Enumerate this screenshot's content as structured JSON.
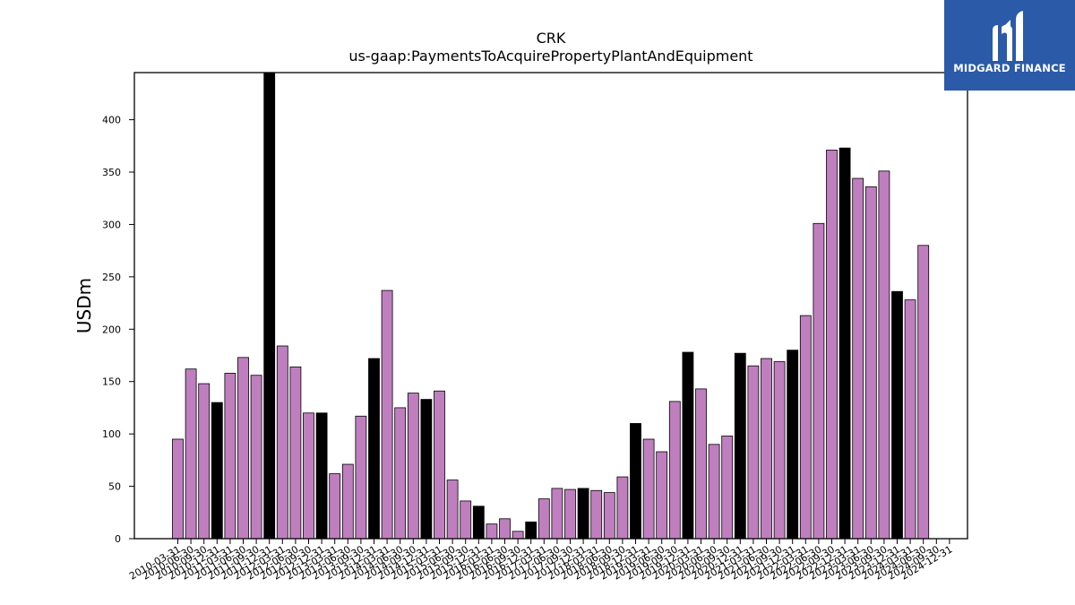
{
  "chart_data": {
    "type": "bar",
    "title": "CRK",
    "subtitle": "us-gaap:PaymentsToAcquirePropertyPlantAndEquipment",
    "xlabel": "",
    "ylabel": "USDm",
    "ylim": [
      0,
      445
    ],
    "yticks": [
      0,
      50,
      100,
      150,
      200,
      250,
      300,
      350,
      400
    ],
    "grid": false,
    "legend": "none",
    "colors": {
      "quarter": "#bf7fbf",
      "year_end": "#000000",
      "edge": "#000000"
    },
    "categories": [
      "2010-03-31",
      "2010-06-30",
      "2010-09-30",
      "2010-12-31",
      "2011-03-31",
      "2011-06-30",
      "2011-09-30",
      "2011-12-31",
      "2012-03-31",
      "2012-06-30",
      "2012-09-30",
      "2012-12-31",
      "2013-03-31",
      "2013-06-30",
      "2013-09-30",
      "2013-12-31",
      "2014-03-31",
      "2014-06-30",
      "2014-09-30",
      "2014-12-31",
      "2015-03-31",
      "2015-06-30",
      "2015-09-30",
      "2015-12-31",
      "2016-03-31",
      "2016-06-30",
      "2016-09-30",
      "2016-12-31",
      "2017-03-31",
      "2017-06-30",
      "2017-09-30",
      "2017-12-31",
      "2018-03-31",
      "2018-06-30",
      "2018-09-30",
      "2018-12-31",
      "2019-03-31",
      "2019-06-30",
      "2019-09-30",
      "2019-12-31",
      "2020-03-31",
      "2020-06-30",
      "2020-09-30",
      "2020-12-31",
      "2021-03-31",
      "2021-06-30",
      "2021-09-30",
      "2021-12-31",
      "2022-03-31",
      "2022-06-30",
      "2022-09-30",
      "2022-12-31",
      "2023-03-31",
      "2023-06-30",
      "2023-09-30",
      "2023-12-31",
      "2024-03-31",
      "2024-06-30",
      "2024-09-30",
      "2024-12-31"
    ],
    "values": [
      95,
      162,
      148,
      130,
      158,
      173,
      156,
      445,
      184,
      164,
      120,
      120,
      62,
      71,
      117,
      172,
      237,
      125,
      139,
      133,
      141,
      56,
      36,
      31,
      14,
      19,
      7,
      16,
      38,
      48,
      47,
      48,
      46,
      44,
      59,
      110,
      95,
      83,
      131,
      178,
      143,
      90,
      98,
      177,
      165,
      172,
      169,
      180,
      213,
      301,
      371,
      373,
      344,
      336,
      351,
      236,
      228,
      280,
      null,
      null
    ],
    "highlight": [
      false,
      false,
      false,
      true,
      false,
      false,
      false,
      true,
      false,
      false,
      false,
      true,
      false,
      false,
      false,
      true,
      false,
      false,
      false,
      true,
      false,
      false,
      false,
      true,
      false,
      false,
      false,
      true,
      false,
      false,
      false,
      true,
      false,
      false,
      false,
      true,
      false,
      false,
      false,
      true,
      false,
      false,
      false,
      true,
      false,
      false,
      false,
      true,
      false,
      false,
      false,
      true,
      false,
      false,
      false,
      true,
      false,
      false,
      false,
      true
    ]
  },
  "logo": {
    "text": "MIDGARD FINANCE"
  }
}
